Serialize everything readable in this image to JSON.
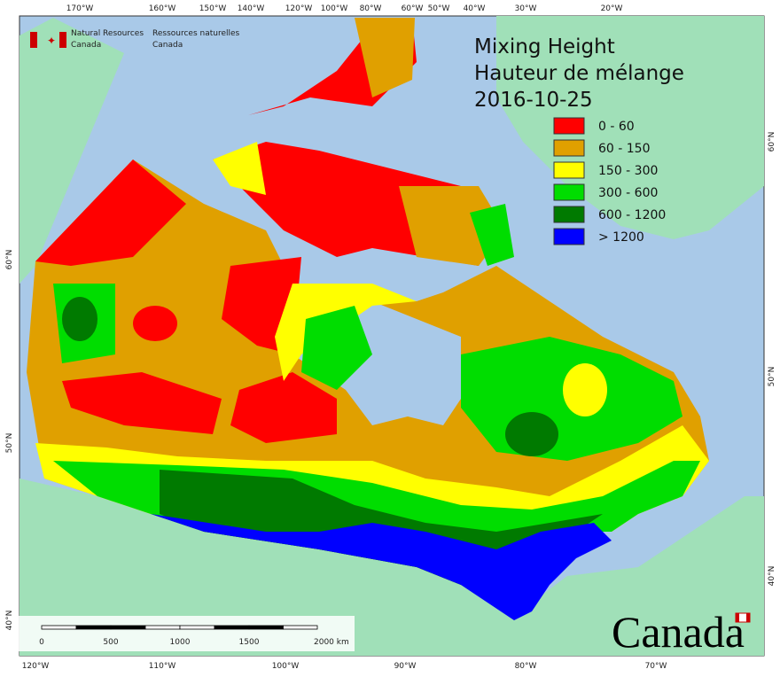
{
  "header": {
    "title": "Mixing Height",
    "subtitle": "Hauteur de mélange",
    "date": "2016-10-25"
  },
  "agency": {
    "en": [
      "Natural Resources",
      "Canada"
    ],
    "fr": [
      "Ressources naturelles",
      "Canada"
    ]
  },
  "legend": [
    {
      "label": "0 - 60",
      "color": "#ff0000"
    },
    {
      "label": "60 - 150",
      "color": "#e0a000"
    },
    {
      "label": "150 - 300",
      "color": "#ffff00"
    },
    {
      "label": "300 - 600",
      "color": "#00dd00"
    },
    {
      "label": "600 - 1200",
      "color": "#007a00"
    },
    {
      "label": "> 1200",
      "color": "#0000ff"
    }
  ],
  "top_longitudes": [
    "170°W",
    "160°W",
    "150°W",
    "140°W",
    "120°W",
    "100°W",
    "80°W",
    "60°W",
    "50°W",
    "40°W",
    "30°W",
    "20°W"
  ],
  "bottom_longitudes": [
    "120°W",
    "110°W",
    "100°W",
    "90°W",
    "80°W",
    "70°W"
  ],
  "left_latitudes": [
    "60°N",
    "50°N",
    "40°N"
  ],
  "right_latitudes": [
    "60°N",
    "50°N",
    "40°N"
  ],
  "scale_bar": [
    "0",
    "500",
    "1000",
    "1500",
    "2000 km"
  ],
  "wordmark": "Canada"
}
